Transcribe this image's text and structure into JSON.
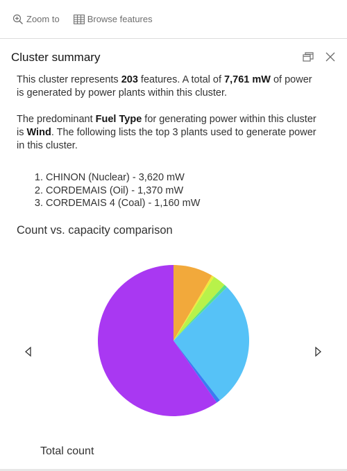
{
  "toolbar": {
    "zoom_label": "Zoom to",
    "browse_label": "Browse features"
  },
  "panel": {
    "title": "Cluster summary"
  },
  "summary": {
    "p1_pre": "This cluster represents ",
    "feature_count": "203",
    "p1_mid": " features. A total of ",
    "total_power": "7,761 mW",
    "p1_post": " of power is generated by power plants within this cluster.",
    "p2_pre": "The predominant ",
    "field_name": "Fuel Type",
    "p2_mid": " for generating power within this cluster is ",
    "predominant": "Wind",
    "p2_post": ". The following lists the top 3 plants used to generate power in this cluster.",
    "top_plants": [
      "CHINON (Nuclear) - 3,620 mW",
      "CORDEMAIS (Oil) - 1,370 mW",
      "CORDEMAIS 4 (Coal) - 1,160 mW"
    ]
  },
  "chart": {
    "title": "Count vs. capacity comparison",
    "caption": "Total count"
  },
  "chart_data": {
    "type": "pie",
    "title": "Count vs. capacity comparison",
    "caption": "Total count",
    "slices": [
      {
        "value": 8.5,
        "color": "#f2a93b"
      },
      {
        "value": 0.5,
        "color": "#f0ea3c"
      },
      {
        "value": 2.8,
        "color": "#b8f24a"
      },
      {
        "value": 0.7,
        "color": "#58e08e"
      },
      {
        "value": 27.0,
        "color": "#56c2f7"
      },
      {
        "value": 0.8,
        "color": "#3a7cf2"
      },
      {
        "value": 59.7,
        "color": "#a938f2"
      }
    ]
  }
}
